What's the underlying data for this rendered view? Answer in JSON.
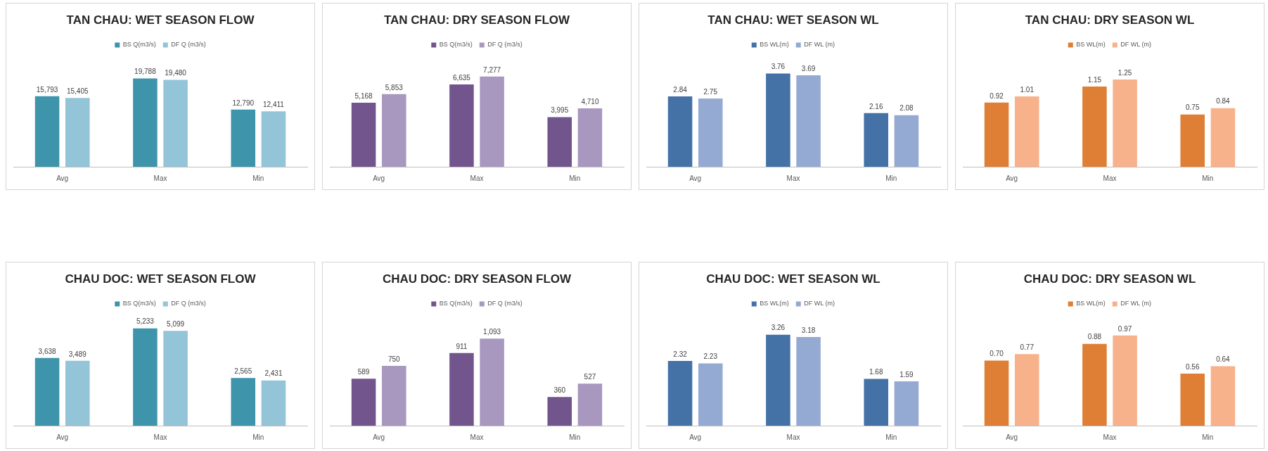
{
  "chart_data": [
    {
      "type": "bar",
      "title": "TAN CHAU: WET SEASON FLOW",
      "categories": [
        "Avg",
        "Max",
        "Min"
      ],
      "legend": "top",
      "series": [
        {
          "name": "BS Q(m3/s)",
          "color": "#3d94ab",
          "values": [
            15793,
            19788,
            12790
          ],
          "value_labels": [
            "15,793",
            "19,788",
            "12,790"
          ]
        },
        {
          "name": "DF Q (m3/s)",
          "color": "#93c4d7",
          "values": [
            15405,
            19480,
            12411
          ],
          "value_labels": [
            "15,405",
            "19,480",
            "12,411"
          ]
        }
      ]
    },
    {
      "type": "bar",
      "title": "TAN CHAU: DRY SEASON FLOW",
      "categories": [
        "Avg",
        "Max",
        "Min"
      ],
      "legend": "top",
      "series": [
        {
          "name": "BS Q(m3/s)",
          "color": "#72558d",
          "values": [
            5168,
            6635,
            3995
          ],
          "value_labels": [
            "5,168",
            "6,635",
            "3,995"
          ]
        },
        {
          "name": "DF Q (m3/s)",
          "color": "#a898bf",
          "values": [
            5853,
            7277,
            4710
          ],
          "value_labels": [
            "5,853",
            "7,277",
            "4,710"
          ]
        }
      ]
    },
    {
      "type": "bar",
      "title": "TAN CHAU: WET SEASON WL",
      "categories": [
        "Avg",
        "Max",
        "Min"
      ],
      "legend": "top",
      "series": [
        {
          "name": "BS WL(m)",
          "color": "#4471a6",
          "values": [
            2.84,
            3.76,
            2.16
          ],
          "value_labels": [
            "2.84",
            "3.76",
            "2.16"
          ]
        },
        {
          "name": "DF WL (m)",
          "color": "#95aad2",
          "values": [
            2.75,
            3.69,
            2.08
          ],
          "value_labels": [
            "2.75",
            "3.69",
            "2.08"
          ]
        }
      ]
    },
    {
      "type": "bar",
      "title": "TAN CHAU: DRY SEASON WL",
      "categories": [
        "Avg",
        "Max",
        "Min"
      ],
      "legend": "top",
      "series": [
        {
          "name": "BS WL(m)",
          "color": "#de7f35",
          "values": [
            0.92,
            1.15,
            0.75
          ],
          "value_labels": [
            "0.92",
            "1.15",
            "0.75"
          ]
        },
        {
          "name": "DF WL (m)",
          "color": "#f7b28b",
          "values": [
            1.01,
            1.25,
            0.84
          ],
          "value_labels": [
            "1.01",
            "1.25",
            "0.84"
          ]
        }
      ]
    },
    {
      "type": "bar",
      "title": "CHAU DOC: WET SEASON FLOW",
      "categories": [
        "Avg",
        "Max",
        "Min"
      ],
      "legend": "top",
      "series": [
        {
          "name": "BS Q(m3/s)",
          "color": "#3d94ab",
          "values": [
            3638,
            5233,
            2565
          ],
          "value_labels": [
            "3,638",
            "5,233",
            "2,565"
          ]
        },
        {
          "name": "DF Q (m3/s)",
          "color": "#93c4d7",
          "values": [
            3489,
            5099,
            2431
          ],
          "value_labels": [
            "3,489",
            "5,099",
            "2,431"
          ]
        }
      ]
    },
    {
      "type": "bar",
      "title": "CHAU DOC: DRY SEASON FLOW",
      "categories": [
        "Avg",
        "Max",
        "Min"
      ],
      "legend": "top",
      "series": [
        {
          "name": "BS Q(m3/s)",
          "color": "#72558d",
          "values": [
            589,
            911,
            360
          ],
          "value_labels": [
            "589",
            "911",
            "360"
          ]
        },
        {
          "name": "DF Q (m3/s)",
          "color": "#a898bf",
          "values": [
            750,
            1093,
            527
          ],
          "value_labels": [
            "750",
            "1,093",
            "527"
          ]
        }
      ]
    },
    {
      "type": "bar",
      "title": "CHAU DOC: WET SEASON WL",
      "categories": [
        "Avg",
        "Max",
        "Min"
      ],
      "legend": "top",
      "series": [
        {
          "name": "BS WL(m)",
          "color": "#4471a6",
          "values": [
            2.32,
            3.26,
            1.68
          ],
          "value_labels": [
            "2.32",
            "3.26",
            "1.68"
          ]
        },
        {
          "name": "DF WL (m)",
          "color": "#95aad2",
          "values": [
            2.23,
            3.18,
            1.59
          ],
          "value_labels": [
            "2.23",
            "3.18",
            "1.59"
          ]
        }
      ]
    },
    {
      "type": "bar",
      "title": "CHAU DOC: DRY SEASON WL",
      "categories": [
        "Avg",
        "Max",
        "Min"
      ],
      "legend": "top",
      "series": [
        {
          "name": "BS WL(m)",
          "color": "#de7f35",
          "values": [
            0.7,
            0.88,
            0.56
          ],
          "value_labels": [
            "0.70",
            "0.88",
            "0.56"
          ]
        },
        {
          "name": "DF WL (m)",
          "color": "#f7b28b",
          "values": [
            0.77,
            0.97,
            0.64
          ],
          "value_labels": [
            "0.77",
            "0.97",
            "0.64"
          ]
        }
      ]
    }
  ]
}
